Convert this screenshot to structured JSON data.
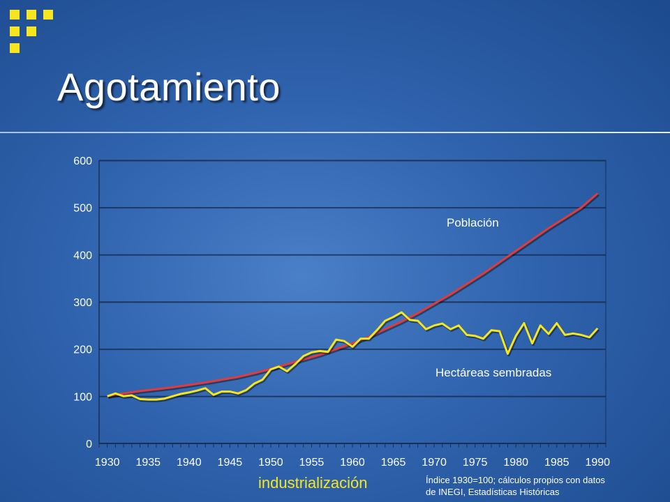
{
  "slide": {
    "title": "Agotamiento",
    "footer_label": "industrialización",
    "source_note_line1": "Índice 1930=100; cálculos propios con datos",
    "source_note_line2": "de INEGI, Estadísticas Históricas"
  },
  "icons": {
    "logo": "yellow-squares-grid-icon"
  },
  "colors": {
    "background": "#2f63ad",
    "poblacion_line": "#e23b3b",
    "hectareas_line": "#f5e620",
    "axis_text": "#ffffff"
  },
  "chart_data": {
    "type": "line",
    "title": "",
    "xlabel": "",
    "ylabel": "",
    "ylim": [
      0,
      600
    ],
    "xlim": [
      1929,
      1991
    ],
    "y_ticks": [
      0,
      100,
      200,
      300,
      400,
      500,
      600
    ],
    "x_ticks": [
      1930,
      1935,
      1940,
      1945,
      1950,
      1955,
      1960,
      1965,
      1970,
      1975,
      1980,
      1985,
      1990
    ],
    "grid": true,
    "series": [
      {
        "name": "Población",
        "color": "#e23b3b",
        "x": [
          1930,
          1932,
          1934,
          1936,
          1938,
          1940,
          1942,
          1944,
          1946,
          1948,
          1950,
          1952,
          1954,
          1956,
          1958,
          1960,
          1962,
          1964,
          1966,
          1968,
          1970,
          1972,
          1974,
          1976,
          1978,
          1980,
          1982,
          1984,
          1986,
          1988,
          1990
        ],
        "values": [
          100,
          106,
          111,
          115,
          119,
          124,
          129,
          135,
          141,
          149,
          158,
          168,
          178,
          188,
          200,
          212,
          226,
          242,
          258,
          276,
          296,
          316,
          338,
          360,
          384,
          408,
          432,
          456,
          478,
          500,
          530
        ]
      },
      {
        "name": "Hectáreas sembradas",
        "color": "#f5e620",
        "x": [
          1930,
          1931,
          1932,
          1933,
          1934,
          1935,
          1936,
          1937,
          1938,
          1939,
          1940,
          1941,
          1942,
          1943,
          1944,
          1945,
          1946,
          1947,
          1948,
          1949,
          1950,
          1951,
          1952,
          1953,
          1954,
          1955,
          1956,
          1957,
          1958,
          1959,
          1960,
          1961,
          1962,
          1963,
          1964,
          1965,
          1966,
          1967,
          1968,
          1969,
          1970,
          1971,
          1972,
          1973,
          1974,
          1975,
          1976,
          1977,
          1978,
          1979,
          1980,
          1981,
          1982,
          1983,
          1984,
          1985,
          1986,
          1987,
          1988,
          1989,
          1990
        ],
        "values": [
          100,
          106,
          100,
          102,
          94,
          93,
          93,
          95,
          100,
          105,
          108,
          112,
          117,
          103,
          110,
          110,
          106,
          113,
          127,
          135,
          157,
          163,
          153,
          168,
          185,
          193,
          196,
          194,
          220,
          217,
          205,
          222,
          222,
          240,
          260,
          268,
          278,
          262,
          260,
          242,
          250,
          254,
          242,
          250,
          230,
          228,
          222,
          240,
          238,
          190,
          228,
          255,
          212,
          250,
          232,
          255,
          230,
          233,
          230,
          225,
          244
        ]
      }
    ],
    "annotations": [
      {
        "text": "Población",
        "series": "Población"
      },
      {
        "text": "Hectáreas sembradas",
        "series": "Hectáreas sembradas"
      }
    ]
  }
}
